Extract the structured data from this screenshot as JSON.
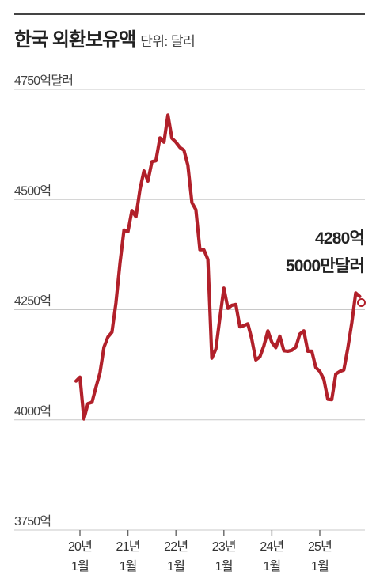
{
  "header": {
    "title": "한국 외환보유액",
    "unit": "단위: 달러"
  },
  "colors": {
    "line": "#B1202A",
    "grid": "#c8c8c8",
    "text": "#222222"
  },
  "chart_data": {
    "type": "line",
    "title": "한국 외환보유액",
    "unit_label": "단위: 달러",
    "y_ticks": [
      {
        "value": 4750,
        "label": "4750억달러"
      },
      {
        "value": 4500,
        "label": "4500억"
      },
      {
        "value": 4250,
        "label": "4250억"
      },
      {
        "value": 4000,
        "label": "4000억"
      },
      {
        "value": 3750,
        "label": "3750억"
      }
    ],
    "ylim": [
      3750,
      4750
    ],
    "x_ticks": [
      {
        "value": "2020-01",
        "line1": "20년",
        "line2": "1월"
      },
      {
        "value": "2021-01",
        "line1": "21년",
        "line2": "1월"
      },
      {
        "value": "2022-01",
        "line1": "22년",
        "line2": "1월"
      },
      {
        "value": "2023-01",
        "line1": "23년",
        "line2": "1월"
      },
      {
        "value": "2024-01",
        "line1": "24년",
        "line2": "1월"
      },
      {
        "value": "2025-01",
        "line1": "25년",
        "line2": "1월"
      }
    ],
    "xlim": [
      "2020-01",
      "2025-12"
    ],
    "grid": true,
    "series": [
      {
        "x": [
          "2019-12",
          "2020-01",
          "2020-02",
          "2020-03",
          "2020-04",
          "2020-05",
          "2020-06",
          "2020-07",
          "2020-08",
          "2020-09",
          "2020-10",
          "2020-11",
          "2020-12",
          "2021-01",
          "2021-02",
          "2021-03",
          "2021-04",
          "2021-05",
          "2021-06",
          "2021-07",
          "2021-08",
          "2021-09",
          "2021-10",
          "2021-11",
          "2021-12",
          "2022-01",
          "2022-02",
          "2022-03",
          "2022-04",
          "2022-05",
          "2022-06",
          "2022-07",
          "2022-08",
          "2022-09",
          "2022-10",
          "2022-11",
          "2022-12",
          "2023-01",
          "2023-02",
          "2023-03",
          "2023-04",
          "2023-05",
          "2023-06",
          "2023-07",
          "2023-08",
          "2023-09",
          "2023-10",
          "2023-11",
          "2023-12",
          "2024-01",
          "2024-02",
          "2024-03",
          "2024-04",
          "2024-05",
          "2024-06",
          "2024-07",
          "2024-08",
          "2024-09",
          "2024-10",
          "2024-11",
          "2024-12",
          "2025-01",
          "2025-02",
          "2025-03",
          "2025-04",
          "2025-05",
          "2025-06",
          "2025-07",
          "2025-08",
          "2025-09",
          "2025-10",
          "2025-11"
        ],
        "y": [
          4088,
          4097,
          4002,
          4037,
          4040,
          4074,
          4107,
          4165,
          4188,
          4199,
          4265,
          4355,
          4431,
          4427,
          4475,
          4461,
          4523,
          4565,
          4542,
          4586,
          4588,
          4640,
          4630,
          4692,
          4639,
          4630,
          4618,
          4612,
          4578,
          4493,
          4477,
          4386,
          4386,
          4364,
          4140,
          4161,
          4232,
          4299,
          4253,
          4260,
          4262,
          4211,
          4214,
          4218,
          4183,
          4136,
          4143,
          4168,
          4202,
          4176,
          4164,
          4190,
          4157,
          4156,
          4158,
          4165,
          4195,
          4202,
          4156,
          4156,
          4119,
          4110,
          4092,
          4047,
          4046,
          4104,
          4110,
          4113,
          4162,
          4220,
          4288,
          4280
        ]
      }
    ],
    "annotation": {
      "line1": "4280억",
      "line2": "5000만달러",
      "at": "2025-11",
      "value": 4280.5
    }
  }
}
